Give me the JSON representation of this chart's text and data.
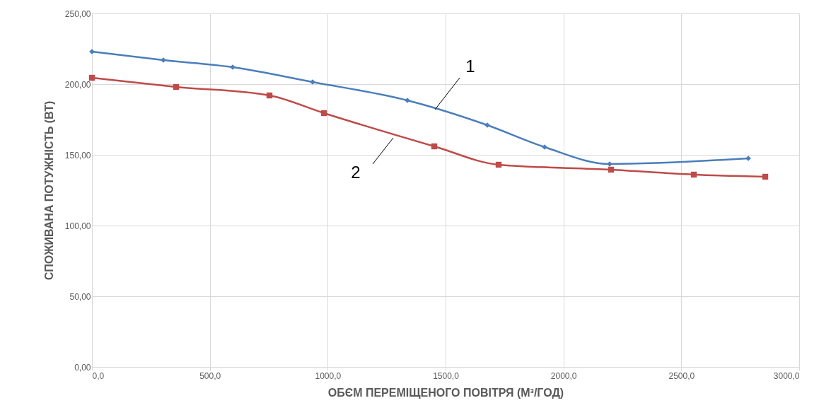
{
  "chart_data": {
    "type": "line",
    "xlabel": "ОБЄМ ПЕРЕМІЩЕНОГО ПОВІТРЯ (М³/ГОД)",
    "ylabel": "СПОЖИВАНА ПОТУЖНІСТЬ (ВТ)",
    "series": [
      {
        "color": "#4a7ebb",
        "marker": "diamond",
        "x": [
          0,
          303,
          597,
          936,
          1338,
          1677,
          1920,
          2196,
          2784
        ],
        "values": [
          223,
          217,
          212,
          201.5,
          188.5,
          171,
          155.5,
          143.5,
          147.5
        ]
      },
      {
        "color": "#be4b48",
        "marker": "square",
        "x": [
          0,
          357,
          753,
          984,
          1452,
          1725,
          2202,
          2553,
          2856
        ],
        "values": [
          204.5,
          198,
          192,
          179.5,
          156,
          143,
          139.5,
          136,
          134.5
        ]
      }
    ],
    "xlim": [
      0,
      3000
    ],
    "ylim": [
      0,
      250
    ],
    "xticks": [
      {
        "value": 0,
        "label": "0,0"
      },
      {
        "value": 500,
        "label": "500,0"
      },
      {
        "value": 1000,
        "label": "1000,0"
      },
      {
        "value": 1500,
        "label": "1500,0"
      },
      {
        "value": 2000,
        "label": "2000,0"
      },
      {
        "value": 2500,
        "label": "2500,0"
      },
      {
        "value": 3000,
        "label": "3000,0"
      }
    ],
    "yticks": [
      {
        "value": 0,
        "label": "0,00"
      },
      {
        "value": 50,
        "label": "50,00"
      },
      {
        "value": 100,
        "label": "100,00"
      },
      {
        "value": 150,
        "label": "150,00"
      },
      {
        "value": 200,
        "label": "200,00"
      },
      {
        "value": 250,
        "label": "250,00"
      }
    ],
    "grid": true,
    "line_style": "solid",
    "annotations": [
      {
        "text": "1",
        "x": 1455,
        "y": 182
      },
      {
        "text": "2",
        "x": 1278,
        "y": 162
      }
    ]
  }
}
